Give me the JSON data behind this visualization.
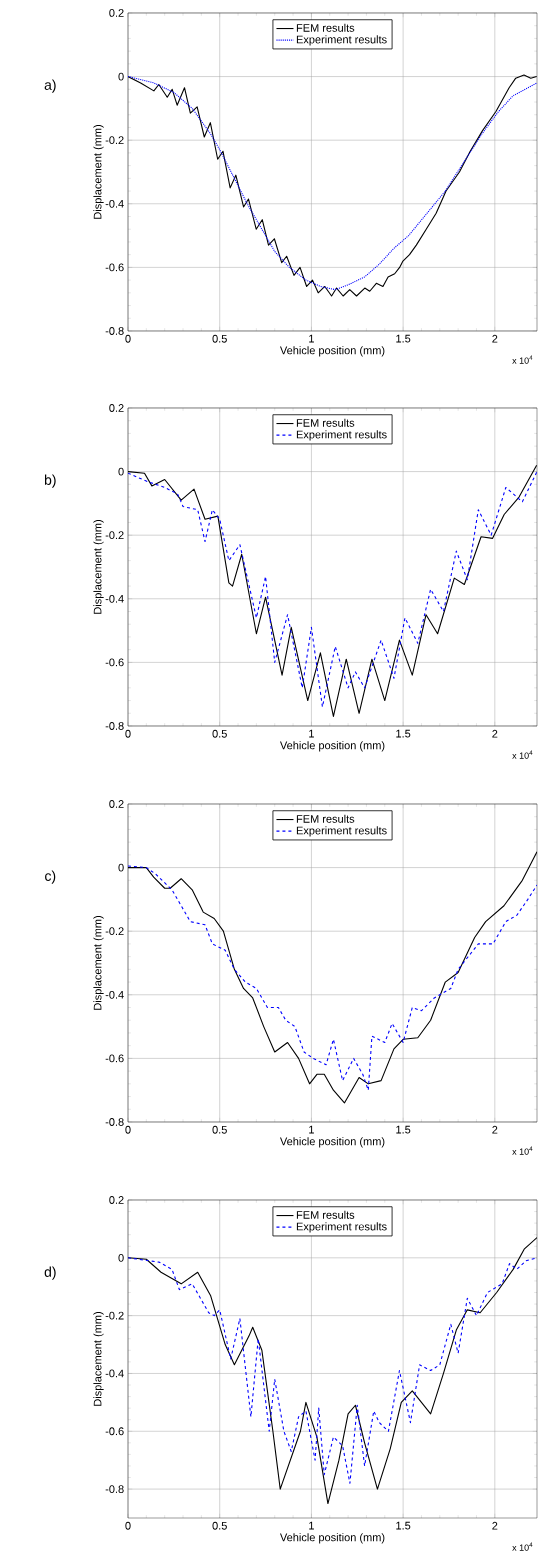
{
  "chart_data": [
    {
      "type": "line",
      "xlabel": "Vehicle position (mm)",
      "ylabel": "Displacement (mm)",
      "xlim": [
        0,
        2.23
      ],
      "ylim": [
        -0.8,
        0.2
      ],
      "xticks": [
        0,
        0.5,
        1,
        1.5,
        2
      ],
      "yticks": [
        -0.8,
        -0.6,
        -0.4,
        -0.2,
        0,
        0.2
      ],
      "grid": true,
      "legend": "top",
      "marker": "none",
      "annotations": [
        "a)",
        "x 10$^{4}$"
      ],
      "series": [
        {
          "name": "FEM results",
          "color": "#000000",
          "line_style": "solid",
          "x": [
            0,
            0.069,
            0.141,
            0.168,
            0.214,
            0.241,
            0.268,
            0.308,
            0.34,
            0.377,
            0.416,
            0.449,
            0.489,
            0.518,
            0.557,
            0.588,
            0.63,
            0.657,
            0.699,
            0.732,
            0.766,
            0.798,
            0.838,
            0.865,
            0.905,
            0.938,
            0.974,
            1.006,
            1.037,
            1.073,
            1.11,
            1.137,
            1.173,
            1.209,
            1.246,
            1.291,
            1.318,
            1.354,
            1.39,
            1.418,
            1.454,
            1.481,
            1.499,
            1.535,
            1.572,
            1.626,
            1.68,
            1.734,
            1.807,
            1.861,
            1.933,
            2.006,
            2.078,
            2.114,
            2.159,
            2.196,
            2.228
          ],
          "values": [
            0,
            -0.02,
            -0.045,
            -0.025,
            -0.065,
            -0.04,
            -0.09,
            -0.035,
            -0.115,
            -0.095,
            -0.19,
            -0.145,
            -0.26,
            -0.235,
            -0.35,
            -0.31,
            -0.41,
            -0.385,
            -0.48,
            -0.45,
            -0.53,
            -0.51,
            -0.585,
            -0.565,
            -0.625,
            -0.6,
            -0.66,
            -0.64,
            -0.68,
            -0.66,
            -0.69,
            -0.665,
            -0.69,
            -0.67,
            -0.69,
            -0.665,
            -0.675,
            -0.65,
            -0.66,
            -0.63,
            -0.62,
            -0.6,
            -0.58,
            -0.56,
            -0.53,
            -0.48,
            -0.43,
            -0.36,
            -0.3,
            -0.24,
            -0.17,
            -0.11,
            -0.035,
            -0.005,
            0.005,
            -0.005,
            0
          ]
        },
        {
          "name": "Experiment results",
          "color": "#0000ff",
          "line_style": "dotted",
          "x": [
            0,
            0.141,
            0.25,
            0.35,
            0.45,
            0.5,
            0.58,
            0.65,
            0.73,
            0.8,
            0.88,
            0.97,
            1.05,
            1.13,
            1.2,
            1.29,
            1.37,
            1.45,
            1.53,
            1.63,
            1.73,
            1.83,
            1.93,
            2.02,
            2.1,
            2.23
          ],
          "values": [
            0,
            -0.02,
            -0.05,
            -0.1,
            -0.18,
            -0.23,
            -0.32,
            -0.4,
            -0.48,
            -0.55,
            -0.6,
            -0.64,
            -0.66,
            -0.67,
            -0.655,
            -0.63,
            -0.59,
            -0.54,
            -0.5,
            -0.43,
            -0.36,
            -0.27,
            -0.18,
            -0.11,
            -0.06,
            -0.02
          ]
        }
      ]
    },
    {
      "type": "line",
      "xlabel": "Vehicle position (mm)",
      "ylabel": "Displacement (mm)",
      "xlim": [
        0,
        2.23
      ],
      "ylim": [
        -0.8,
        0.2
      ],
      "xticks": [
        0,
        0.5,
        1,
        1.5,
        2
      ],
      "yticks": [
        -0.8,
        -0.6,
        -0.4,
        -0.2,
        0,
        0.2
      ],
      "grid": true,
      "legend": "top",
      "marker": "none",
      "annotations": [
        "b)",
        "x 10$^{4}$"
      ],
      "series": [
        {
          "name": "FEM results",
          "color": "#000000",
          "line_style": "solid",
          "x": [
            0,
            0.09,
            0.13,
            0.2,
            0.29,
            0.36,
            0.42,
            0.49,
            0.55,
            0.57,
            0.62,
            0.7,
            0.75,
            0.84,
            0.89,
            0.98,
            1.049,
            1.12,
            1.19,
            1.26,
            1.33,
            1.4,
            1.48,
            1.55,
            1.625,
            1.688,
            1.779,
            1.834,
            1.925,
            1.988,
            2.051,
            2.132,
            2.228
          ],
          "values": [
            0,
            -0.005,
            -0.045,
            -0.025,
            -0.09,
            -0.055,
            -0.15,
            -0.14,
            -0.35,
            -0.36,
            -0.26,
            -0.51,
            -0.395,
            -0.64,
            -0.49,
            -0.72,
            -0.57,
            -0.77,
            -0.59,
            -0.76,
            -0.59,
            -0.72,
            -0.53,
            -0.64,
            -0.45,
            -0.51,
            -0.335,
            -0.355,
            -0.205,
            -0.21,
            -0.135,
            -0.08,
            0.02
          ]
        },
        {
          "name": "Experiment results",
          "color": "#0000ff",
          "line_style": "dashed",
          "x": [
            0,
            0.1,
            0.2,
            0.27,
            0.3,
            0.38,
            0.42,
            0.46,
            0.5,
            0.55,
            0.61,
            0.7,
            0.75,
            0.8,
            0.87,
            0.95,
            1,
            1.06,
            1.13,
            1.2,
            1.24,
            1.29,
            1.38,
            1.45,
            1.51,
            1.58,
            1.65,
            1.72,
            1.79,
            1.85,
            1.91,
            1.98,
            2.06,
            2.15,
            2.23
          ],
          "values": [
            -0.005,
            -0.03,
            -0.05,
            -0.07,
            -0.11,
            -0.12,
            -0.22,
            -0.12,
            -0.15,
            -0.28,
            -0.23,
            -0.46,
            -0.33,
            -0.6,
            -0.45,
            -0.68,
            -0.49,
            -0.74,
            -0.55,
            -0.68,
            -0.63,
            -0.68,
            -0.53,
            -0.65,
            -0.46,
            -0.54,
            -0.37,
            -0.44,
            -0.25,
            -0.34,
            -0.12,
            -0.2,
            -0.05,
            -0.095,
            0
          ]
        }
      ]
    },
    {
      "type": "line",
      "xlabel": "Vehicle position (mm)",
      "ylabel": "Displacement (mm)",
      "xlim": [
        0,
        2.23
      ],
      "ylim": [
        -0.8,
        0.2
      ],
      "xticks": [
        0,
        0.5,
        1,
        1.5,
        2
      ],
      "yticks": [
        -0.8,
        -0.6,
        -0.4,
        -0.2,
        0,
        0.2
      ],
      "grid": true,
      "legend": "top",
      "marker": "none",
      "annotations": [
        "c)",
        "x 10$^{4}$"
      ],
      "series": [
        {
          "name": "FEM results",
          "color": "#000000",
          "line_style": "solid",
          "x": [
            0,
            0.1,
            0.14,
            0.2,
            0.23,
            0.29,
            0.35,
            0.41,
            0.47,
            0.52,
            0.58,
            0.63,
            0.68,
            0.74,
            0.8,
            0.87,
            0.93,
            0.99,
            1.03,
            1.07,
            1.12,
            1.18,
            1.22,
            1.26,
            1.31,
            1.38,
            1.45,
            1.5,
            1.58,
            1.65,
            1.73,
            1.8,
            1.89,
            1.95,
            2.05,
            2.15,
            2.23
          ],
          "values": [
            0,
            0,
            -0.03,
            -0.065,
            -0.065,
            -0.035,
            -0.07,
            -0.14,
            -0.16,
            -0.2,
            -0.32,
            -0.38,
            -0.41,
            -0.5,
            -0.58,
            -0.55,
            -0.6,
            -0.68,
            -0.65,
            -0.65,
            -0.7,
            -0.74,
            -0.7,
            -0.66,
            -0.68,
            -0.67,
            -0.57,
            -0.54,
            -0.535,
            -0.48,
            -0.36,
            -0.33,
            -0.22,
            -0.17,
            -0.12,
            -0.04,
            0.05
          ]
        },
        {
          "name": "Experiment results",
          "color": "#0000ff",
          "line_style": "dashed",
          "x": [
            0,
            0.1,
            0.15,
            0.24,
            0.29,
            0.34,
            0.42,
            0.46,
            0.53,
            0.58,
            0.64,
            0.7,
            0.76,
            0.82,
            0.86,
            0.91,
            0.96,
            1.01,
            1.08,
            1.12,
            1.17,
            1.23,
            1.28,
            1.31,
            1.33,
            1.4,
            1.44,
            1.5,
            1.55,
            1.6,
            1.67,
            1.76,
            1.8,
            1.91,
            1.99,
            2.06,
            2.12,
            2.18,
            2.23
          ],
          "values": [
            0.005,
            0,
            -0.02,
            -0.07,
            -0.12,
            -0.17,
            -0.18,
            -0.24,
            -0.26,
            -0.32,
            -0.36,
            -0.38,
            -0.44,
            -0.44,
            -0.48,
            -0.5,
            -0.58,
            -0.6,
            -0.62,
            -0.54,
            -0.67,
            -0.6,
            -0.65,
            -0.7,
            -0.53,
            -0.55,
            -0.49,
            -0.55,
            -0.44,
            -0.45,
            -0.41,
            -0.38,
            -0.32,
            -0.24,
            -0.24,
            -0.17,
            -0.15,
            -0.1,
            -0.055
          ]
        }
      ]
    },
    {
      "type": "line",
      "xlabel": "Vehicle position (mm)",
      "ylabel": "Displacement (mm)",
      "xlim": [
        0,
        2.23
      ],
      "ylim": [
        -0.9,
        0.2
      ],
      "xticks": [
        0,
        0.5,
        1,
        1.5,
        2
      ],
      "yticks": [
        -0.8,
        -0.6,
        -0.4,
        -0.2,
        0,
        0.2
      ],
      "grid": true,
      "legend": "top",
      "marker": "none",
      "annotations": [
        "d)",
        "x 10$^{4}$"
      ],
      "series": [
        {
          "name": "FEM results",
          "color": "#000000",
          "line_style": "solid",
          "x": [
            0,
            0.1,
            0.18,
            0.29,
            0.38,
            0.45,
            0.53,
            0.58,
            0.66,
            0.68,
            0.73,
            0.79,
            0.83,
            0.94,
            0.97,
            1.03,
            1.09,
            1.15,
            1.2,
            1.24,
            1.29,
            1.36,
            1.43,
            1.49,
            1.55,
            1.6,
            1.65,
            1.72,
            1.79,
            1.85,
            1.92,
            2.01,
            2.1,
            2.16,
            2.23
          ],
          "values": [
            0,
            -0.005,
            -0.05,
            -0.09,
            -0.05,
            -0.13,
            -0.3,
            -0.37,
            -0.27,
            -0.24,
            -0.32,
            -0.6,
            -0.8,
            -0.6,
            -0.5,
            -0.62,
            -0.85,
            -0.7,
            -0.54,
            -0.51,
            -0.64,
            -0.8,
            -0.66,
            -0.5,
            -0.46,
            -0.5,
            -0.54,
            -0.4,
            -0.25,
            -0.18,
            -0.19,
            -0.12,
            -0.04,
            0.03,
            0.07
          ]
        },
        {
          "name": "Experiment results",
          "color": "#0000ff",
          "line_style": "dashed",
          "x": [
            0,
            0.17,
            0.24,
            0.28,
            0.35,
            0.44,
            0.47,
            0.5,
            0.56,
            0.61,
            0.67,
            0.71,
            0.77,
            0.8,
            0.85,
            0.89,
            0.93,
            0.97,
            1.02,
            1.04,
            1.07,
            1.12,
            1.17,
            1.21,
            1.25,
            1.29,
            1.34,
            1.37,
            1.42,
            1.48,
            1.54,
            1.59,
            1.65,
            1.7,
            1.76,
            1.8,
            1.85,
            1.9,
            1.96,
            2.04,
            2.08,
            2.12,
            2.17,
            2.23
          ],
          "values": [
            0,
            -0.015,
            -0.04,
            -0.11,
            -0.09,
            -0.19,
            -0.2,
            -0.18,
            -0.35,
            -0.21,
            -0.55,
            -0.28,
            -0.6,
            -0.42,
            -0.6,
            -0.67,
            -0.55,
            -0.53,
            -0.7,
            -0.52,
            -0.75,
            -0.62,
            -0.65,
            -0.78,
            -0.51,
            -0.72,
            -0.53,
            -0.57,
            -0.6,
            -0.39,
            -0.57,
            -0.37,
            -0.39,
            -0.37,
            -0.23,
            -0.33,
            -0.14,
            -0.2,
            -0.12,
            -0.09,
            -0.02,
            -0.04,
            -0.01,
            0
          ]
        }
      ]
    }
  ]
}
